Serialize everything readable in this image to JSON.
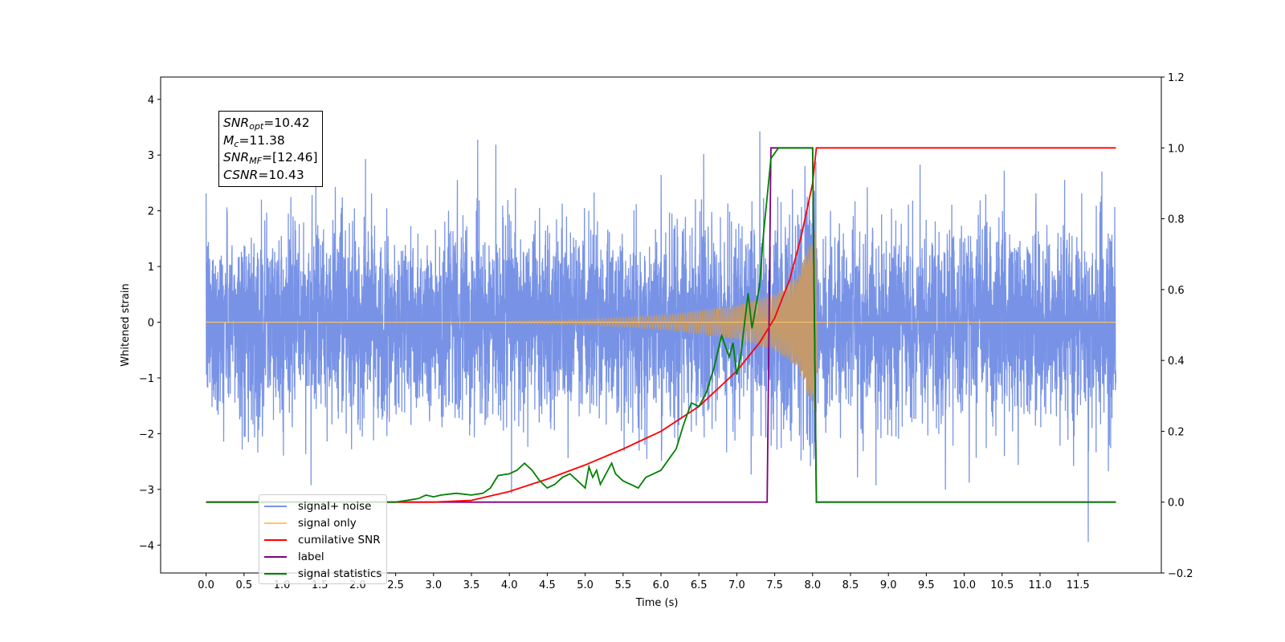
{
  "chart_data": {
    "type": "line",
    "title": "",
    "xlabel": "Time (s)",
    "ylabel": "Whitened strain",
    "y2label": "",
    "xlim": [
      -0.6,
      12.6
    ],
    "ylim": [
      -4.5,
      4.4
    ],
    "y2lim": [
      -0.2,
      1.2
    ],
    "xticks": [
      "0.0",
      "0.5",
      "1.0",
      "1.5",
      "2.0",
      "2.5",
      "3.0",
      "3.5",
      "4.0",
      "4.5",
      "5.0",
      "5.5",
      "6.0",
      "6.5",
      "7.0",
      "7.5",
      "8.0",
      "8.5",
      "9.0",
      "9.5",
      "10.0",
      "10.5",
      "11.0",
      "11.5"
    ],
    "yticks": [
      "4",
      "3",
      "2",
      "1",
      "0",
      "−1",
      "−2",
      "−3",
      "−4"
    ],
    "y2ticks": [
      "1.2",
      "1.0",
      "0.8",
      "0.6",
      "0.4",
      "0.2",
      "0.0",
      "−0.2"
    ],
    "annotation": {
      "snr_opt_label": "SNR",
      "snr_opt_sub": "opt",
      "snr_opt_value": "=10.42",
      "mc_label": "M",
      "mc_sub": "c",
      "mc_value": "=11.38",
      "snr_mf_label": "SNR",
      "snr_mf_sub": "MF",
      "snr_mf_value": "=[12.46]",
      "csnr_label": "CSNR",
      "csnr_value": "=10.43"
    },
    "legend": {
      "placement": "lower-left",
      "entries": [
        {
          "label": "signal+ noise",
          "color": "#7893e6"
        },
        {
          "label": "signal only",
          "color": "#ffc56b"
        },
        {
          "label": "cumilative SNR",
          "color": "#ff0000"
        },
        {
          "label": "label",
          "color": "#800080"
        },
        {
          "label": "signal statistics",
          "color": "#008000"
        }
      ],
      "hidden_overlap_text": "label only"
    },
    "series": [
      {
        "name": "signal+ noise",
        "axis": "left",
        "color": "#7893e6",
        "description_noise_std": 0.98,
        "x_range": [
          0,
          12.0
        ]
      },
      {
        "name": "signal only",
        "axis": "left",
        "color": "#c49a6c",
        "chirp_start": 3.3,
        "chirp_end": 8.05,
        "amplitude_points": [
          [
            3.3,
            0.0
          ],
          [
            5.0,
            0.05
          ],
          [
            6.0,
            0.12
          ],
          [
            7.0,
            0.3
          ],
          [
            7.5,
            0.5
          ],
          [
            7.8,
            0.8
          ],
          [
            7.95,
            1.4
          ],
          [
            8.05,
            1.7
          ]
        ]
      },
      {
        "name": "cumilative SNR",
        "axis": "right",
        "color": "#ff0000",
        "x": [
          0.0,
          3.0,
          3.5,
          4.0,
          4.5,
          5.0,
          5.5,
          6.0,
          6.5,
          7.0,
          7.3,
          7.5,
          7.7,
          7.85,
          8.0,
          8.05,
          12.0
        ],
        "y": [
          0.0,
          0.0,
          0.005,
          0.03,
          0.065,
          0.105,
          0.15,
          0.2,
          0.27,
          0.37,
          0.45,
          0.52,
          0.63,
          0.75,
          0.9,
          1.0,
          1.0
        ]
      },
      {
        "name": "label",
        "axis": "right",
        "color": "#800080",
        "x": [
          0.0,
          7.4,
          7.45,
          8.0,
          8.05,
          12.0
        ],
        "y": [
          0.0,
          0.0,
          1.0,
          1.0,
          0.0,
          0.0
        ]
      },
      {
        "name": "signal statistics",
        "axis": "right",
        "color": "#008000",
        "x": [
          0.0,
          2.5,
          2.8,
          2.9,
          3.0,
          3.1,
          3.3,
          3.5,
          3.65,
          3.75,
          3.85,
          4.0,
          4.1,
          4.2,
          4.3,
          4.4,
          4.5,
          4.6,
          4.7,
          4.8,
          4.9,
          5.0,
          5.05,
          5.1,
          5.15,
          5.2,
          5.3,
          5.35,
          5.4,
          5.5,
          5.6,
          5.7,
          5.8,
          5.9,
          6.0,
          6.1,
          6.2,
          6.3,
          6.4,
          6.5,
          6.6,
          6.7,
          6.8,
          6.9,
          6.95,
          7.0,
          7.05,
          7.1,
          7.15,
          7.2,
          7.3,
          7.35,
          7.45,
          7.55,
          7.7,
          7.9,
          8.0,
          8.05,
          8.3,
          12.0
        ],
        "y": [
          0.0,
          0.0,
          0.01,
          0.02,
          0.015,
          0.02,
          0.025,
          0.02,
          0.025,
          0.04,
          0.075,
          0.08,
          0.09,
          0.11,
          0.09,
          0.06,
          0.04,
          0.05,
          0.07,
          0.08,
          0.06,
          0.04,
          0.1,
          0.07,
          0.09,
          0.05,
          0.09,
          0.11,
          0.08,
          0.06,
          0.05,
          0.04,
          0.07,
          0.08,
          0.09,
          0.12,
          0.15,
          0.22,
          0.28,
          0.27,
          0.31,
          0.38,
          0.47,
          0.41,
          0.45,
          0.36,
          0.41,
          0.5,
          0.59,
          0.49,
          0.61,
          0.75,
          0.97,
          1.0,
          1.0,
          1.0,
          1.0,
          0.0,
          0.0,
          0.0
        ]
      }
    ]
  }
}
